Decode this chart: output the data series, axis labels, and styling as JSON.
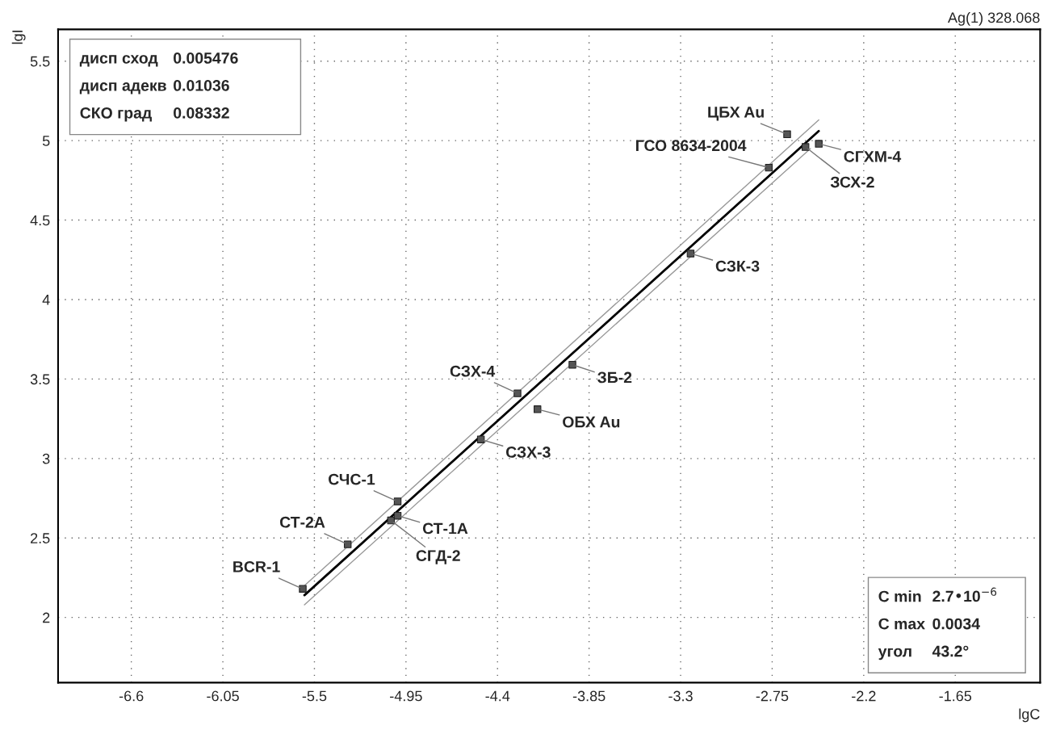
{
  "chart_data": {
    "type": "scatter",
    "title": "Ag(1) 328.068",
    "xlabel": "lgC",
    "ylabel": "lgI",
    "xlim": [
      -7.04,
      -1.14
    ],
    "ylim": [
      1.59,
      5.7
    ],
    "xticks": [
      -6.6,
      -6.05,
      -5.5,
      -4.95,
      -4.4,
      -3.85,
      -3.3,
      -2.75,
      -2.2,
      -1.65
    ],
    "yticks": [
      2,
      2.5,
      3,
      3.5,
      4,
      4.5,
      5,
      5.5
    ],
    "grid": true,
    "legend": false,
    "series": [
      {
        "type": "line",
        "color": "#000000",
        "x": [
          -5.56,
          -2.47
        ],
        "values": [
          2.14,
          5.06
        ]
      },
      {
        "type": "line",
        "color": "#999999",
        "x": [
          -5.56,
          -2.47
        ],
        "values": [
          2.2,
          5.13
        ]
      },
      {
        "type": "line",
        "color": "#999999",
        "x": [
          -5.56,
          -2.52
        ],
        "values": [
          2.08,
          4.95
        ]
      },
      {
        "color": "#555555",
        "marker": "square",
        "x": [
          -5.57,
          -5.3,
          -5.0,
          -5.04,
          -5.0,
          -4.5,
          -4.28,
          -4.16,
          -3.95,
          -3.24,
          -2.77,
          -2.55,
          -2.47
        ],
        "values": [
          2.18,
          2.46,
          2.73,
          2.61,
          2.64,
          3.12,
          3.41,
          3.31,
          3.59,
          4.29,
          4.83,
          4.96,
          4.98
        ]
      },
      {
        "color": "#555555",
        "marker": "square",
        "x": [
          -2.66
        ],
        "values": [
          5.04
        ]
      }
    ],
    "annotations": [
      "дисп сход\t0.005476",
      "дисп адекв\t0.01036",
      "СКО град\t0.08332",
      "C min\t2.7•10$^{−6}$",
      "C max\t0.0034",
      "угол\t43.2°",
      {
        "text": "BCR-1",
        "x": -5.57,
        "y": 2.18
      },
      {
        "text": "СТ-2А",
        "x": -5.3,
        "y": 2.46
      },
      {
        "text": "СЧС-1",
        "x": -5.0,
        "y": 2.73
      },
      {
        "text": "СТ-1А",
        "x": -5.0,
        "y": 2.64
      },
      {
        "text": "СГД-2",
        "x": -5.04,
        "y": 2.61
      },
      {
        "text": "СЗХ-3",
        "x": -4.5,
        "y": 3.12
      },
      {
        "text": "СЗХ-4",
        "x": -4.28,
        "y": 3.41
      },
      {
        "text": "ОБХ Au",
        "x": -4.16,
        "y": 3.31
      },
      {
        "text": "ЗБ-2",
        "x": -3.95,
        "y": 3.59
      },
      {
        "text": "СЗК-3",
        "x": -3.24,
        "y": 4.29
      },
      {
        "text": "ГСО 8634-2004",
        "x": -2.77,
        "y": 4.83
      },
      {
        "text": "СГХМ-4",
        "x": -2.47,
        "y": 4.98
      },
      {
        "text": "ЗСХ-2",
        "x": -2.55,
        "y": 4.96
      },
      {
        "text": "ЦБХ Au",
        "x": -2.66,
        "y": 5.04
      }
    ]
  }
}
